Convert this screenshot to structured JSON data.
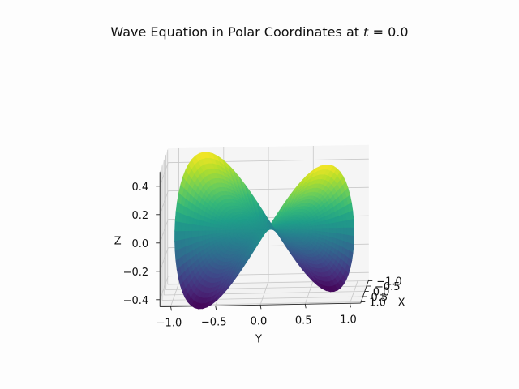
{
  "chart_data": {
    "type": "surface3d",
    "title": "Wave Equation in Polar Coordinates at",
    "title_var": "t",
    "title_eq": " = 0.0",
    "xlabel": "X",
    "ylabel": "Y",
    "zlabel": "Z",
    "x_ticks": [
      "−1.0",
      "−0.5",
      "0.0",
      "0.5",
      "1.0"
    ],
    "y_ticks": [
      "−1.0",
      "−0.5",
      "0.0",
      "0.5",
      "1.0"
    ],
    "z_ticks": [
      "0.4",
      "0.2",
      "0.0",
      "−0.2",
      "−0.4"
    ],
    "xlim": [
      -1.0,
      1.0
    ],
    "ylim": [
      -1.0,
      1.0
    ],
    "zlim": [
      -0.45,
      0.5
    ],
    "grid": true,
    "colormap": "viridis",
    "surface": "z = 0.5 * r^2 * sin(2*theta), r in [0,1]"
  }
}
